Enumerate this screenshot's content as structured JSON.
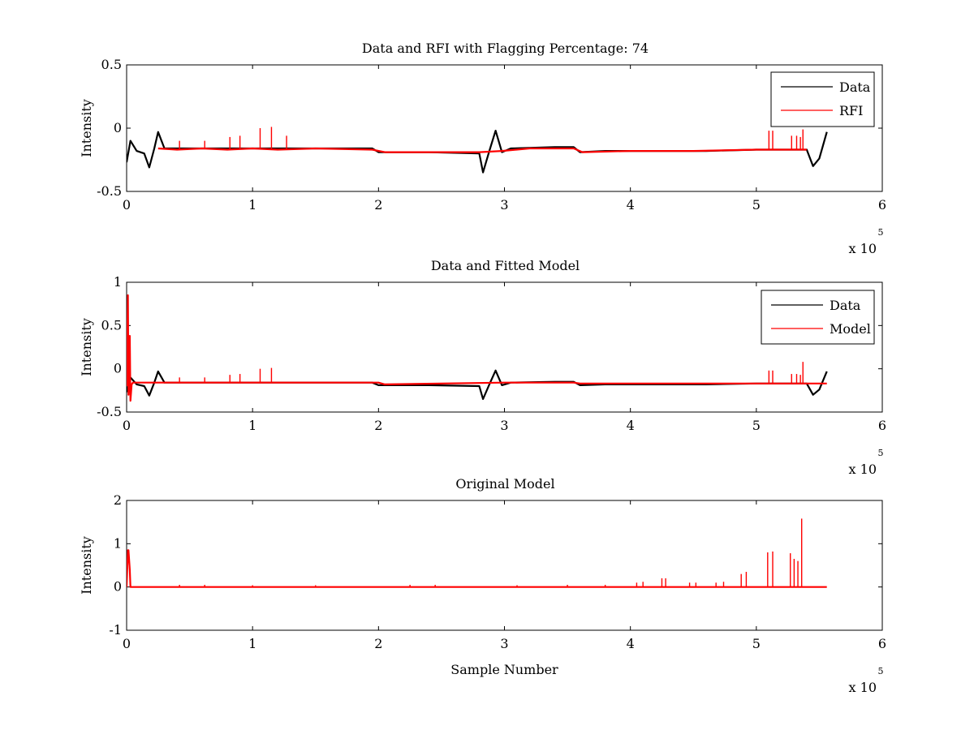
{
  "chart_data": [
    {
      "type": "line",
      "title": "Data and RFI with Flagging Percentage: 74",
      "xlabel": "",
      "ylabel": "Intensity",
      "xlim": [
        0,
        600000
      ],
      "ylim": [
        -0.5,
        0.5
      ],
      "xticks": [
        0,
        1,
        2,
        3,
        4,
        5,
        6
      ],
      "yticks": [
        -0.5,
        0,
        0.5
      ],
      "x_multiplier_base": "x 10",
      "x_multiplier_exp": "5",
      "legend_position": "top-right",
      "grid": false,
      "series": [
        {
          "name": "Data",
          "color": "#000000",
          "x": [
            0,
            3000,
            8000,
            14000,
            18000,
            22000,
            25000,
            30000,
            60000,
            100000,
            150000,
            195000,
            200000,
            205000,
            240000,
            280000,
            283000,
            288000,
            293000,
            298000,
            305000,
            340000,
            355000,
            360000,
            380000,
            420000,
            460000,
            500000,
            540000,
            545000,
            550000,
            556000
          ],
          "y": [
            -0.27,
            -0.1,
            -0.18,
            -0.2,
            -0.31,
            -0.16,
            -0.03,
            -0.16,
            -0.16,
            -0.16,
            -0.16,
            -0.16,
            -0.19,
            -0.19,
            -0.19,
            -0.2,
            -0.35,
            -0.18,
            -0.02,
            -0.19,
            -0.16,
            -0.15,
            -0.15,
            -0.19,
            -0.18,
            -0.18,
            -0.18,
            -0.17,
            -0.17,
            -0.3,
            -0.24,
            -0.03
          ]
        },
        {
          "name": "RFI",
          "color": "#ff0000",
          "x": [
            25000,
            40000,
            60000,
            80000,
            100000,
            120000,
            150000,
            195000,
            205000,
            240000,
            280000,
            298000,
            320000,
            340000,
            355000,
            362000,
            400000,
            450000,
            500000,
            530000,
            540000
          ],
          "y": [
            -0.16,
            -0.17,
            -0.16,
            -0.17,
            -0.16,
            -0.17,
            -0.16,
            -0.17,
            -0.19,
            -0.19,
            -0.19,
            -0.18,
            -0.16,
            -0.16,
            -0.16,
            -0.19,
            -0.18,
            -0.18,
            -0.17,
            -0.17,
            -0.17
          ],
          "spikes": [
            {
              "x": 42000,
              "y": -0.1
            },
            {
              "x": 62000,
              "y": -0.1
            },
            {
              "x": 82000,
              "y": -0.07
            },
            {
              "x": 90000,
              "y": -0.06
            },
            {
              "x": 106000,
              "y": 0.0
            },
            {
              "x": 115000,
              "y": 0.01
            },
            {
              "x": 127000,
              "y": -0.06
            },
            {
              "x": 510000,
              "y": -0.02
            },
            {
              "x": 513000,
              "y": -0.02
            },
            {
              "x": 528000,
              "y": -0.06
            },
            {
              "x": 532000,
              "y": -0.06
            },
            {
              "x": 535000,
              "y": -0.07
            },
            {
              "x": 537000,
              "y": -0.01
            }
          ]
        }
      ]
    },
    {
      "type": "line",
      "title": "Data and Fitted Model",
      "xlabel": "",
      "ylabel": "Intensity",
      "xlim": [
        0,
        600000
      ],
      "ylim": [
        -0.5,
        1
      ],
      "xticks": [
        0,
        1,
        2,
        3,
        4,
        5,
        6
      ],
      "yticks": [
        -0.5,
        0,
        0.5,
        1
      ],
      "x_multiplier_base": "x 10",
      "x_multiplier_exp": "5",
      "legend_position": "top-right",
      "grid": false,
      "series": [
        {
          "name": "Data",
          "color": "#000000",
          "x": [
            0,
            3000,
            8000,
            14000,
            18000,
            22000,
            25000,
            30000,
            60000,
            100000,
            150000,
            195000,
            200000,
            205000,
            240000,
            280000,
            283000,
            288000,
            293000,
            298000,
            305000,
            340000,
            355000,
            360000,
            380000,
            420000,
            460000,
            500000,
            540000,
            545000,
            550000,
            556000
          ],
          "y": [
            -0.27,
            -0.1,
            -0.18,
            -0.2,
            -0.31,
            -0.16,
            -0.03,
            -0.16,
            -0.16,
            -0.16,
            -0.16,
            -0.16,
            -0.19,
            -0.19,
            -0.19,
            -0.2,
            -0.35,
            -0.18,
            -0.02,
            -0.19,
            -0.16,
            -0.15,
            -0.15,
            -0.19,
            -0.18,
            -0.18,
            -0.18,
            -0.17,
            -0.17,
            -0.3,
            -0.24,
            -0.03
          ]
        },
        {
          "name": "Model",
          "color": "#ff0000",
          "x": [
            0,
            1000,
            1500,
            2500,
            3000,
            4000,
            5000,
            8000,
            25000,
            100000,
            200000,
            205000,
            300000,
            355000,
            360000,
            450000,
            556000
          ],
          "y": [
            -0.2,
            0.85,
            -0.3,
            0.38,
            -0.37,
            -0.18,
            -0.16,
            -0.16,
            -0.16,
            -0.16,
            -0.16,
            -0.18,
            -0.16,
            -0.16,
            -0.17,
            -0.17,
            -0.17
          ],
          "spikes": [
            {
              "x": 42000,
              "y": -0.1
            },
            {
              "x": 62000,
              "y": -0.1
            },
            {
              "x": 82000,
              "y": -0.07
            },
            {
              "x": 90000,
              "y": -0.06
            },
            {
              "x": 106000,
              "y": 0.0
            },
            {
              "x": 115000,
              "y": 0.01
            },
            {
              "x": 510000,
              "y": -0.02
            },
            {
              "x": 513000,
              "y": -0.02
            },
            {
              "x": 528000,
              "y": -0.06
            },
            {
              "x": 532000,
              "y": -0.06
            },
            {
              "x": 535000,
              "y": -0.07
            },
            {
              "x": 537000,
              "y": 0.08
            }
          ]
        }
      ]
    },
    {
      "type": "line",
      "title": "Original Model",
      "xlabel": "Sample Number",
      "ylabel": "Intensity",
      "xlim": [
        0,
        600000
      ],
      "ylim": [
        -1,
        2
      ],
      "xticks": [
        0,
        1,
        2,
        3,
        4,
        5,
        6
      ],
      "yticks": [
        -1,
        0,
        1,
        2
      ],
      "x_multiplier_base": "x 10",
      "x_multiplier_exp": "5",
      "grid": false,
      "series": [
        {
          "color": "#ff0000",
          "x": [
            0,
            1000,
            1500,
            2500,
            3000,
            4000,
            556000
          ],
          "y": [
            0.0,
            0.85,
            0.85,
            0.4,
            0.0,
            0.0,
            0.0
          ],
          "spikes": [
            {
              "x": 42000,
              "y": 0.05
            },
            {
              "x": 62000,
              "y": 0.05
            },
            {
              "x": 100000,
              "y": 0.04
            },
            {
              "x": 150000,
              "y": 0.04
            },
            {
              "x": 225000,
              "y": 0.05
            },
            {
              "x": 245000,
              "y": 0.05
            },
            {
              "x": 310000,
              "y": 0.04
            },
            {
              "x": 350000,
              "y": 0.05
            },
            {
              "x": 380000,
              "y": 0.05
            },
            {
              "x": 405000,
              "y": 0.1
            },
            {
              "x": 410000,
              "y": 0.12
            },
            {
              "x": 425000,
              "y": 0.2
            },
            {
              "x": 428000,
              "y": 0.2
            },
            {
              "x": 447000,
              "y": 0.1
            },
            {
              "x": 452000,
              "y": 0.1
            },
            {
              "x": 468000,
              "y": 0.1
            },
            {
              "x": 474000,
              "y": 0.12
            },
            {
              "x": 488000,
              "y": 0.3
            },
            {
              "x": 492000,
              "y": 0.35
            },
            {
              "x": 509000,
              "y": 0.8
            },
            {
              "x": 513000,
              "y": 0.82
            },
            {
              "x": 527000,
              "y": 0.78
            },
            {
              "x": 530000,
              "y": 0.65
            },
            {
              "x": 533000,
              "y": 0.6
            },
            {
              "x": 536000,
              "y": 1.58
            }
          ]
        }
      ]
    }
  ]
}
